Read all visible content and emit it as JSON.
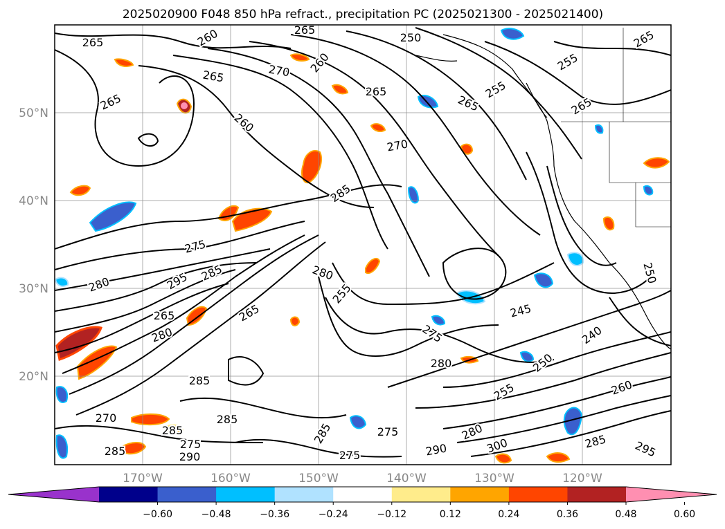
{
  "title": "2025020900 F048 850 hPa refract., precipitation PC (2025021300 - 2025021400)",
  "latitude_labels": [
    "50°N",
    "40°N",
    "30°N",
    "20°N"
  ],
  "longitude_labels": [
    "170°W",
    "160°W",
    "150°W",
    "140°W",
    "130°W",
    "120°W"
  ],
  "contour_labels": [
    {
      "text": "265",
      "angle": 0
    },
    {
      "text": "265",
      "angle": -25
    },
    {
      "text": "260",
      "angle": -30
    },
    {
      "text": "265",
      "angle": 0
    },
    {
      "text": "250",
      "angle": 0
    },
    {
      "text": "270",
      "angle": 10
    },
    {
      "text": "260",
      "angle": -50
    },
    {
      "text": "265",
      "angle": 10
    },
    {
      "text": "265",
      "angle": 0
    },
    {
      "text": "260",
      "angle": 40
    },
    {
      "text": "270",
      "angle": -10
    },
    {
      "text": "255",
      "angle": -30
    },
    {
      "text": "265",
      "angle": 25
    },
    {
      "text": "265",
      "angle": -30
    },
    {
      "text": "255",
      "angle": -30
    },
    {
      "text": "265",
      "angle": -30
    },
    {
      "text": "285",
      "angle": -35
    },
    {
      "text": "275",
      "angle": -15
    },
    {
      "text": "285",
      "angle": -25
    },
    {
      "text": "295",
      "angle": -30
    },
    {
      "text": "280",
      "angle": -20
    },
    {
      "text": "280",
      "angle": 20
    },
    {
      "text": "255",
      "angle": -50
    },
    {
      "text": "245",
      "angle": -15
    },
    {
      "text": "265",
      "angle": -30
    },
    {
      "text": "280",
      "angle": -20
    },
    {
      "text": "275",
      "angle": 35
    },
    {
      "text": "280",
      "angle": 0
    },
    {
      "text": "240",
      "angle": -35
    },
    {
      "text": "250",
      "angle": -40
    },
    {
      "text": "255",
      "angle": -30
    },
    {
      "text": "285",
      "angle": 0
    },
    {
      "text": "260",
      "angle": -20
    },
    {
      "text": "285",
      "angle": 0
    },
    {
      "text": "275",
      "angle": 0
    },
    {
      "text": "280",
      "angle": -25
    },
    {
      "text": "290",
      "angle": -10
    },
    {
      "text": "300",
      "angle": -20
    },
    {
      "text": "275",
      "angle": 0
    },
    {
      "text": "290",
      "angle": 0
    },
    {
      "text": "285",
      "angle": 0
    },
    {
      "text": "295",
      "angle": 25
    },
    {
      "text": "285",
      "angle": -15
    },
    {
      "text": "265",
      "angle": 0
    },
    {
      "text": "285",
      "angle": 0
    },
    {
      "text": "270",
      "angle": 0
    },
    {
      "text": "285",
      "angle": -60
    },
    {
      "text": "275",
      "angle": 0
    },
    {
      "text": "250",
      "angle": 75
    }
  ],
  "colorbar": {
    "colors": [
      "#9932cc",
      "#00008b",
      "#3a5fcd",
      "#00bfff",
      "#b0e2ff",
      "#ffffff",
      "#ffec8b",
      "#ffa500",
      "#ff4500",
      "#b22222",
      "#ff8fb1"
    ],
    "tick_labels": [
      "−0.60",
      "−0.48",
      "−0.36",
      "−0.24",
      "−0.12",
      "0.12",
      "0.24",
      "0.36",
      "0.48",
      "0.60"
    ],
    "extend": "both"
  }
}
